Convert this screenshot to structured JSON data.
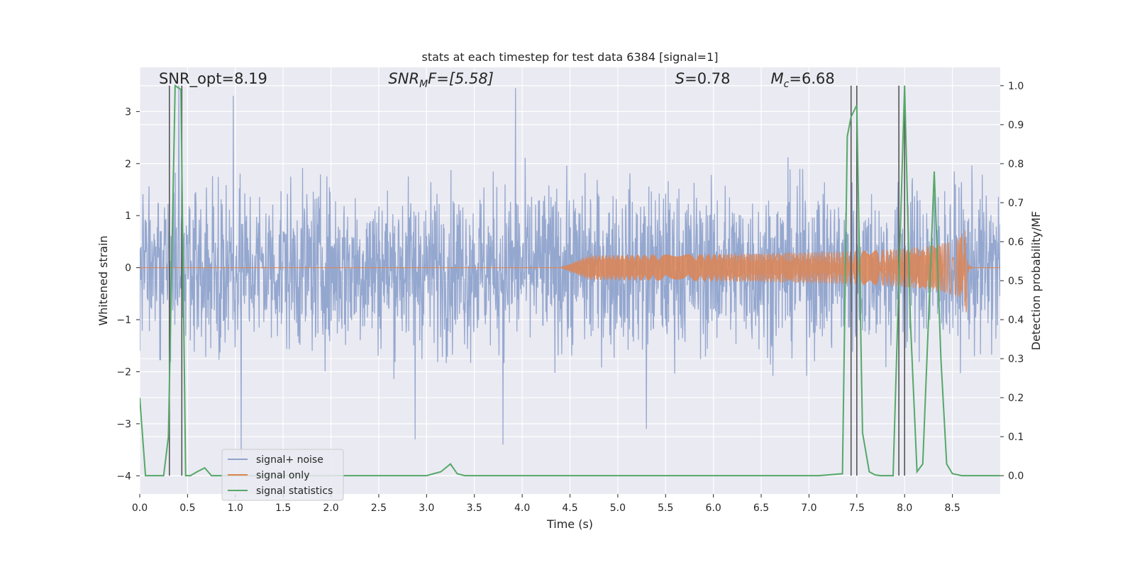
{
  "chart_data": {
    "type": "line",
    "title": "stats at each timestep for test data 6384 [signal=1]",
    "xlabel": "Time (s)",
    "ylabel_left": "Whitened strain",
    "ylabel_right": "Detection probability/MF",
    "xlim": [
      0,
      9.0
    ],
    "ylim_left": [
      -4.35,
      3.85
    ],
    "ylim_right": [
      -0.047,
      1.047
    ],
    "x_ticks": [
      0.0,
      0.5,
      1.0,
      1.5,
      2.0,
      2.5,
      3.0,
      3.5,
      4.0,
      4.5,
      5.0,
      5.5,
      6.0,
      6.5,
      7.0,
      7.5,
      8.0,
      8.5
    ],
    "x_tick_labels": [
      "0.0",
      "0.5",
      "1.0",
      "1.5",
      "2.0",
      "2.5",
      "3.0",
      "3.5",
      "4.0",
      "4.5",
      "5.0",
      "5.5",
      "6.0",
      "6.5",
      "7.0",
      "7.5",
      "8.0",
      "8.5"
    ],
    "y_left_ticks": [
      3,
      2,
      1,
      0,
      -1,
      -2,
      -3,
      -4
    ],
    "y_left_tick_labels": [
      "3",
      "2",
      "1",
      "0",
      "−1",
      "−2",
      "−3",
      "−4"
    ],
    "y_right_ticks": [
      1.0,
      0.9,
      0.8,
      0.7,
      0.6,
      0.5,
      0.4,
      0.3,
      0.2,
      0.1,
      0.0
    ],
    "y_right_tick_labels": [
      "1.0",
      "0.9",
      "0.8",
      "0.7",
      "0.6",
      "0.5",
      "0.4",
      "0.3",
      "0.2",
      "0.1",
      "0.0"
    ],
    "grid": true,
    "legend_position": "lower-left",
    "annotations": [
      {
        "text": "SNR_opt=8.19",
        "x": 0.2,
        "y_right": 1.005
      },
      {
        "text": "SNR_MF=[5.58]",
        "x": 2.6,
        "y_right": 1.005
      },
      {
        "text": "S=0.78",
        "x": 5.6,
        "y_right": 1.005
      },
      {
        "text": "M_c=6.68",
        "x": 6.6,
        "y_right": 1.005
      }
    ],
    "annotation_labels": {
      "snr_opt": "SNR_opt=8.19",
      "snr_mf_main": "SNR",
      "snr_mf_sub": "M",
      "snr_mf_rest": "F=[5.58]",
      "s_main": "S",
      "s_rest": "=0.78",
      "mc_main": "M",
      "mc_sub": "c",
      "mc_rest": "=6.68"
    },
    "vertical_lines_x": [
      0.31,
      0.44,
      7.44,
      7.5,
      7.94,
      8.0
    ],
    "vertical_lines_range_right": [
      0.0,
      1.0
    ],
    "series": [
      {
        "name": "signal+ noise",
        "axis": "left",
        "color": "#8fa3cc",
        "kind": "noise",
        "x_range": [
          0,
          9.0
        ],
        "typical_amplitude": 1.7,
        "peak_amplitude": 3.5,
        "notable_peaks": [
          {
            "x": 0.41,
            "y": 3.5
          },
          {
            "x": 0.98,
            "y": 3.3
          },
          {
            "x": 1.06,
            "y": -3.6
          },
          {
            "x": 3.8,
            "y": -3.4
          },
          {
            "x": 3.93,
            "y": 3.45
          },
          {
            "x": 2.88,
            "y": -3.3
          },
          {
            "x": 5.3,
            "y": -3.1
          }
        ]
      },
      {
        "name": "signal only",
        "axis": "left",
        "color": "#dd8452",
        "kind": "chirp",
        "start_x": 4.4,
        "merger_x": 8.65,
        "peak_amplitude": 0.9
      },
      {
        "name": "signal statistics",
        "axis": "right",
        "color": "#55a868",
        "x": [
          0.0,
          0.06,
          0.13,
          0.25,
          0.3,
          0.37,
          0.43,
          0.48,
          0.53,
          0.6,
          0.68,
          0.75,
          0.9,
          1.5,
          2.0,
          2.5,
          3.0,
          3.15,
          3.25,
          3.32,
          3.4,
          4.0,
          5.0,
          6.0,
          7.0,
          7.1,
          7.35,
          7.4,
          7.44,
          7.5,
          7.56,
          7.63,
          7.69,
          7.75,
          7.82,
          7.88,
          7.94,
          8.0,
          8.06,
          8.13,
          8.19,
          8.25,
          8.31,
          8.38,
          8.44,
          8.5,
          8.6,
          9.0
        ],
        "y": [
          0.2,
          0.0,
          0.0,
          0.0,
          0.1,
          1.0,
          0.99,
          0.0,
          0.0,
          0.01,
          0.02,
          0.0,
          0.0,
          0.0,
          0.0,
          0.0,
          0.0,
          0.01,
          0.03,
          0.005,
          0.0,
          0.0,
          0.0,
          0.0,
          0.0,
          0.0,
          0.005,
          0.87,
          0.92,
          0.95,
          0.11,
          0.01,
          0.002,
          0.0,
          0.0,
          0.0,
          0.5,
          1.0,
          0.4,
          0.01,
          0.03,
          0.4,
          0.78,
          0.3,
          0.03,
          0.005,
          0.0,
          0.0
        ]
      }
    ],
    "colors": {
      "background": "#eaeaf2",
      "grid": "#ffffff",
      "vline": "#555555"
    }
  }
}
